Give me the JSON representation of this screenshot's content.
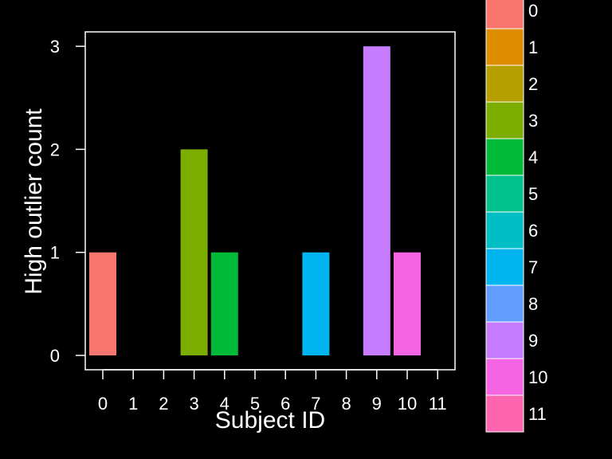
{
  "chart_data": {
    "type": "bar",
    "categories": [
      "0",
      "1",
      "2",
      "3",
      "4",
      "5",
      "6",
      "7",
      "8",
      "9",
      "10",
      "11"
    ],
    "values": [
      1,
      0,
      0,
      2,
      1,
      0,
      0,
      1,
      0,
      3,
      1,
      0
    ],
    "colors": [
      "#F8766D",
      "#DE8C00",
      "#B79F00",
      "#7CAE00",
      "#00BA38",
      "#00C08B",
      "#00BFC4",
      "#00B4F0",
      "#619CFF",
      "#C77CFF",
      "#F564E3",
      "#FF64B0"
    ],
    "xlabel": "Subject ID",
    "ylabel": "High outlier count",
    "ylim": [
      0,
      3
    ],
    "yticks": [
      "0",
      "1",
      "2",
      "3"
    ],
    "legend_placement": "right",
    "grid": false,
    "background": "#000000",
    "foreground": "#ffffff"
  }
}
